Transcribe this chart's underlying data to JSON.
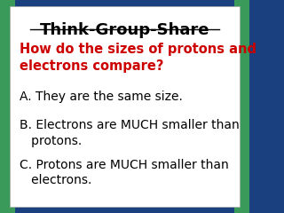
{
  "title": "Think-Group-Share",
  "title_color": "#000000",
  "title_fontsize": 13,
  "question": "How do the sizes of protons and\nelectrons compare?",
  "question_color": "#cc0000",
  "question_fontsize": 10.5,
  "answers": [
    "A. They are the same size.",
    "B. Electrons are MUCH smaller than\n   protons.",
    "C. Protons are MUCH smaller than\n   electrons."
  ],
  "answer_color": "#000000",
  "answer_fontsize": 10,
  "bg_color": "#ffffff",
  "outer_bg": "#1a4080",
  "green_strip": "#3a9a5a"
}
